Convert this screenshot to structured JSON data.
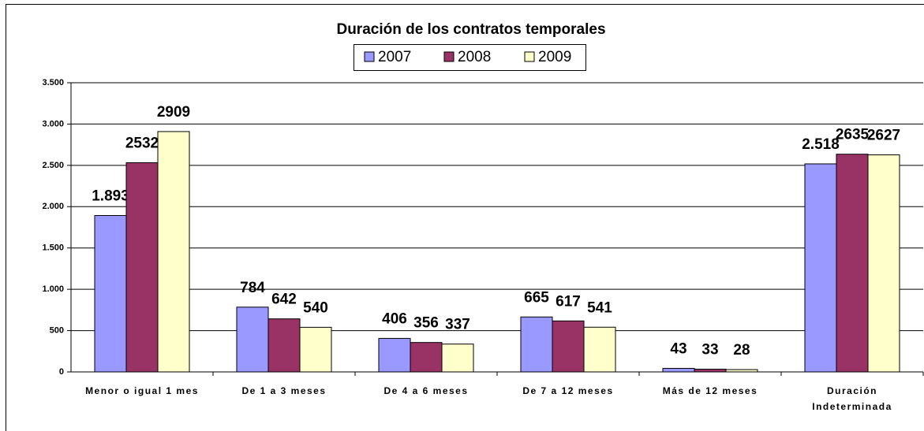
{
  "chart_data": {
    "type": "bar",
    "title": "Duración de los contratos temporales",
    "categories": [
      "Menor o igual 1 mes",
      "De 1 a 3 meses",
      "De 4 a 6 meses",
      "De 7 a 12 meses",
      "Más de 12 meses",
      "Duración Indeterminada"
    ],
    "series": [
      {
        "name": "2007",
        "color": "#9999ff",
        "values": [
          1893,
          784,
          406,
          665,
          43,
          2518
        ],
        "value_labels": [
          "1.893",
          "784",
          "406",
          "665",
          "43",
          "2.518"
        ]
      },
      {
        "name": "2008",
        "color": "#993366",
        "values": [
          2532,
          642,
          356,
          617,
          33,
          2635
        ]
      },
      {
        "name": "2009",
        "color": "#ffffcc",
        "values": [
          2909,
          540,
          337,
          541,
          28,
          2627
        ]
      }
    ],
    "ylim": [
      0,
      3500
    ],
    "yticks": [
      0,
      500,
      {
        "value": 1000,
        "label": "1.000"
      },
      {
        "value": 1500,
        "label": "1.500"
      },
      {
        "value": 2000,
        "label": "2.000"
      },
      {
        "value": 2500,
        "label": "2.500"
      },
      {
        "value": 3000,
        "label": "3.000"
      },
      {
        "value": 3500,
        "label": "3.500"
      }
    ],
    "grid": true
  }
}
